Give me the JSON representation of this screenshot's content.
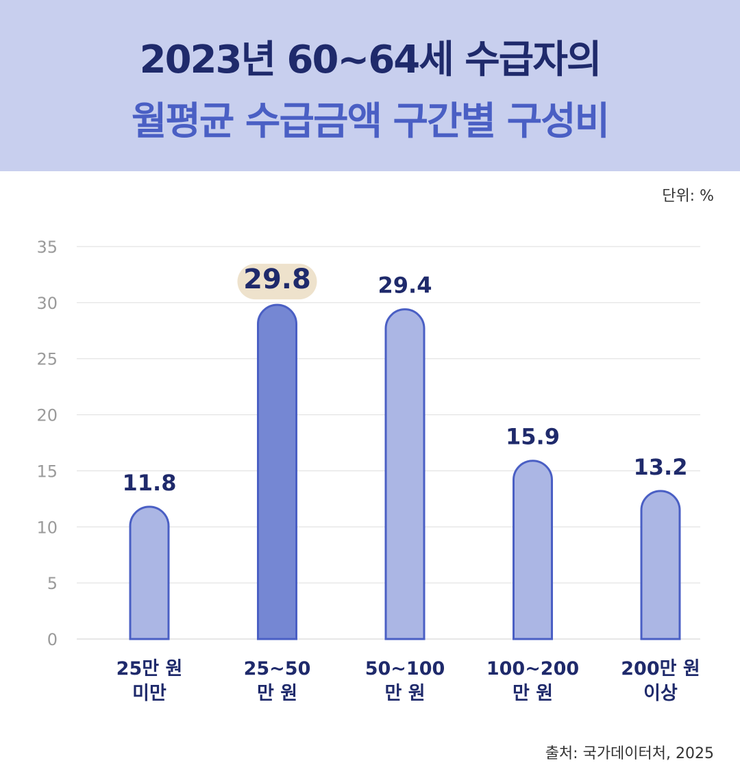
{
  "header": {
    "title_line1": "2023년 60~64세 수급자의",
    "title_line2": "월평균 수급금액 구간별 구성비"
  },
  "unit_label": "단위: %",
  "source_label": "출처: 국가데이터처, 2025",
  "colors": {
    "header_bg": "#c8cfee",
    "title_dark": "#1f2a6b",
    "title_accent": "#4a5fc4",
    "bar_fill": "#abb6e4",
    "bar_highlight_fill": "#7587d3",
    "bar_stroke": "#4a5fc4",
    "highlight_label_bg": "#eee2cc"
  },
  "chart_data": {
    "type": "bar",
    "categories": [
      [
        "25만 원",
        "미만"
      ],
      [
        "25~50",
        "만 원"
      ],
      [
        "50~100",
        "만 원"
      ],
      [
        "100~200",
        "만 원"
      ],
      [
        "200만 원",
        "이상"
      ]
    ],
    "values": [
      11.8,
      29.8,
      29.4,
      15.9,
      13.2
    ],
    "value_labels": [
      "11.8",
      "29.8",
      "29.4",
      "15.9",
      "13.2"
    ],
    "highlight_index": 1,
    "ylim": [
      0,
      35
    ],
    "yticks": [
      0,
      5,
      10,
      15,
      20,
      25,
      30,
      35
    ],
    "grid": true
  }
}
